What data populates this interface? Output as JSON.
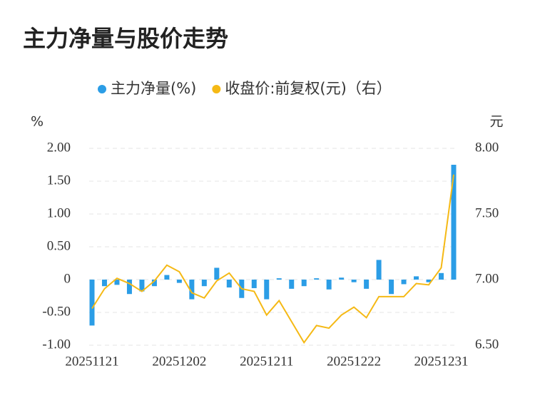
{
  "chart_data": {
    "type": "bar_line",
    "title": "主力净量与股价走势",
    "y_unit": "%",
    "y2_unit": "元",
    "categories": [
      "20251121",
      null,
      null,
      null,
      null,
      null,
      null,
      "20251202",
      null,
      null,
      null,
      null,
      null,
      null,
      "20251211",
      null,
      null,
      null,
      null,
      null,
      null,
      "20251222",
      null,
      null,
      null,
      null,
      null,
      null,
      "20251231",
      null
    ],
    "series": [
      {
        "name": "主力净量(%)",
        "type": "bar",
        "color": "#2b9de6",
        "axis": "y",
        "values": [
          -0.7,
          -0.1,
          -0.08,
          -0.22,
          -0.18,
          -0.1,
          0.07,
          -0.05,
          -0.3,
          -0.1,
          0.18,
          -0.12,
          -0.28,
          -0.13,
          -0.3,
          0.02,
          -0.14,
          -0.1,
          0.02,
          -0.15,
          0.03,
          -0.04,
          -0.14,
          0.3,
          -0.22,
          -0.07,
          0.05,
          -0.04,
          0.1,
          1.75
        ]
      },
      {
        "name": "收盘价:前复权(元)（右）",
        "type": "line",
        "color": "#f5b915",
        "axis": "y2",
        "values": [
          6.78,
          6.93,
          7.01,
          6.97,
          6.91,
          6.99,
          7.11,
          7.06,
          6.9,
          6.86,
          6.99,
          7.05,
          6.93,
          6.91,
          6.73,
          6.84,
          6.68,
          6.52,
          6.65,
          6.63,
          6.73,
          6.79,
          6.71,
          6.87,
          6.87,
          6.87,
          6.97,
          6.96,
          7.09,
          7.8
        ]
      }
    ],
    "ylim": [
      -1,
      2
    ],
    "yticks": [
      {
        "value": 2,
        "label": "2.00"
      },
      {
        "value": 1.5,
        "label": "1.50"
      },
      {
        "value": 1,
        "label": "1.00"
      },
      {
        "value": 0.5,
        "label": "0.50"
      },
      0,
      {
        "value": -0.5,
        "label": "-0.50"
      },
      {
        "value": -1,
        "label": "-1.00"
      }
    ],
    "y2lim": [
      6.5,
      8
    ],
    "y2ticks": [
      {
        "value": 8,
        "label": "8.00"
      },
      {
        "value": 7.5,
        "label": "7.50"
      },
      {
        "value": 7,
        "label": "7.00"
      },
      {
        "value": 6.5,
        "label": "6.50"
      }
    ],
    "grid": true
  }
}
